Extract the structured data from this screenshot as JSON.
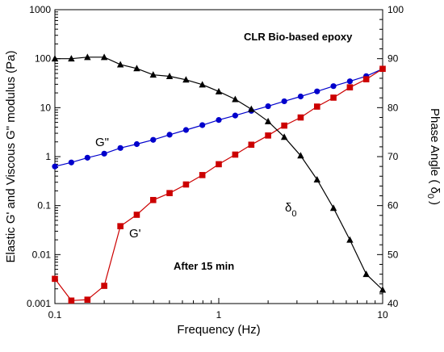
{
  "chart_data": {
    "type": "line",
    "title": "CLR Bio-based epoxy",
    "annotation": "After 15 min",
    "xlabel": "Frequency (Hz)",
    "ylabel": "Elastic G' and Viscous G\" modulus (Pa)",
    "y2label": "Phase Angle ( δ",
    "y2label_sub": "0",
    "y2label_end": ")",
    "x_scale": "log",
    "y_scale": "log",
    "xlim": [
      0.1,
      10
    ],
    "ylim": [
      0.001,
      1000
    ],
    "y2lim": [
      40,
      100
    ],
    "grid": false,
    "x_tick_labels": [
      "0.1",
      "1",
      "10"
    ],
    "y_tick_labels": [
      "0.001",
      "0.01",
      "0.1",
      "1",
      "10",
      "100",
      "1000"
    ],
    "y2_tick_labels": [
      "40",
      "50",
      "60",
      "70",
      "80",
      "90",
      "100"
    ],
    "series": [
      {
        "label": "G\"",
        "color": "#0000cc",
        "marker": "circle",
        "axis": "left",
        "x": [
          0.1,
          0.126,
          0.158,
          0.2,
          0.251,
          0.316,
          0.398,
          0.501,
          0.631,
          0.794,
          1.0,
          1.26,
          1.58,
          2.0,
          2.51,
          3.16,
          3.98,
          5.01,
          6.31,
          7.94,
          10.0
        ],
        "y": [
          0.63,
          0.76,
          0.95,
          1.15,
          1.5,
          1.8,
          2.2,
          2.8,
          3.5,
          4.4,
          5.6,
          6.9,
          8.6,
          10.7,
          13.5,
          16.9,
          21.5,
          27.5,
          34.5,
          44,
          62
        ]
      },
      {
        "label": "G'",
        "color": "#cc0000",
        "marker": "square",
        "axis": "left",
        "x": [
          0.1,
          0.126,
          0.158,
          0.2,
          0.251,
          0.316,
          0.398,
          0.501,
          0.631,
          0.794,
          1.0,
          1.26,
          1.58,
          2.0,
          2.51,
          3.16,
          3.98,
          5.01,
          6.31,
          7.94,
          10.0
        ],
        "y": [
          0.0032,
          0.00115,
          0.0012,
          0.0023,
          0.038,
          0.065,
          0.13,
          0.18,
          0.27,
          0.42,
          0.7,
          1.1,
          1.75,
          2.7,
          4.3,
          6.3,
          10.5,
          16,
          26,
          38,
          62
        ]
      },
      {
        "label": "δ",
        "label_sub": "0",
        "color": "#000000",
        "marker": "triangle",
        "axis": "right",
        "x": [
          0.1,
          0.126,
          0.158,
          0.2,
          0.251,
          0.316,
          0.398,
          0.501,
          0.631,
          0.794,
          1.0,
          1.26,
          1.58,
          2.0,
          2.51,
          3.16,
          3.98,
          5.01,
          6.31,
          7.94,
          10.0
        ],
        "y": [
          90,
          90,
          90.3,
          90.3,
          88.8,
          88,
          86.7,
          86.4,
          85.7,
          84.7,
          83.3,
          81.7,
          79.7,
          77.2,
          74,
          70.2,
          65.3,
          59.5,
          53,
          46,
          42.8
        ]
      }
    ]
  }
}
